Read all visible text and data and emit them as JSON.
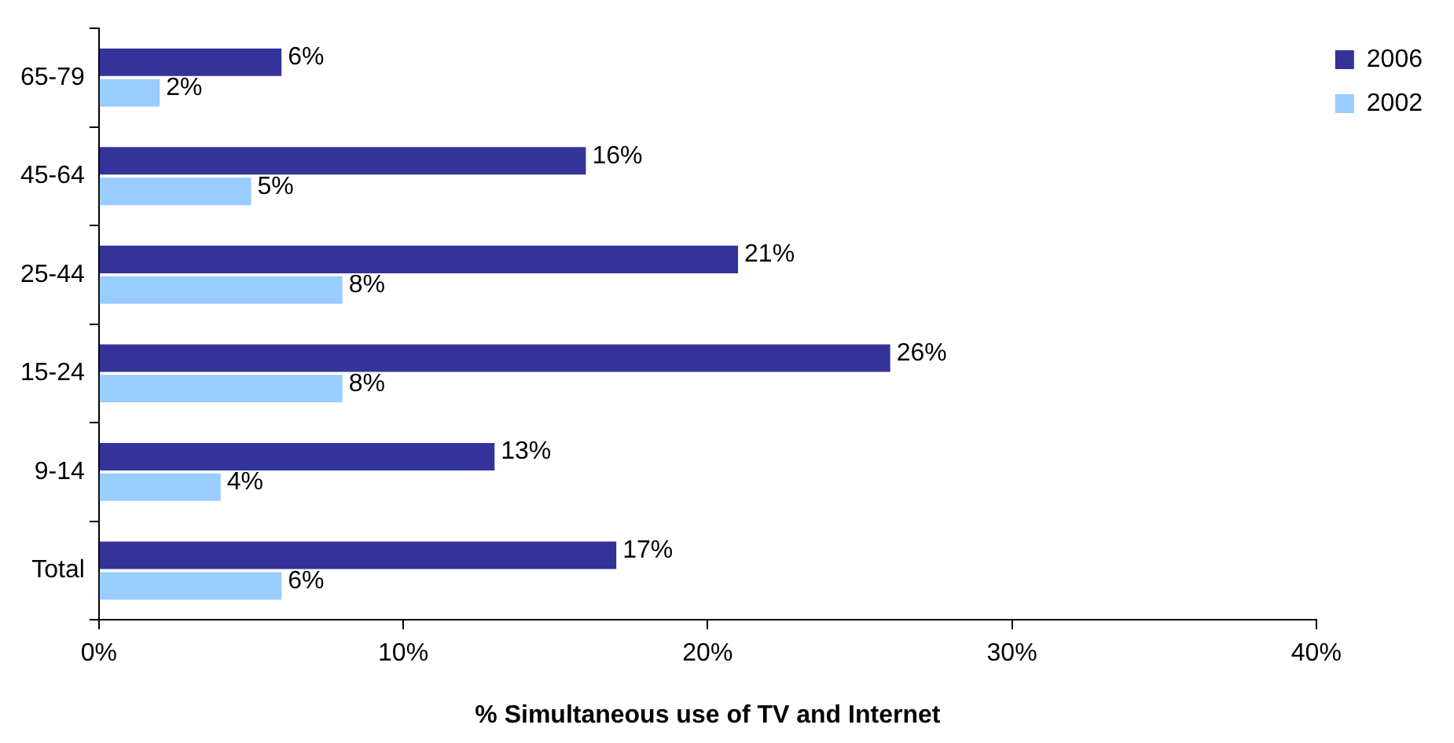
{
  "chart_data": {
    "type": "bar",
    "orientation": "horizontal",
    "xlabel": "% Simultaneous use of TV and Internet",
    "categories": [
      "65-79",
      "45-64",
      "25-44",
      "15-24",
      "9-14",
      "Total"
    ],
    "series": [
      {
        "name": "2006",
        "color": "#333399",
        "values": [
          6,
          16,
          21,
          26,
          13,
          17
        ],
        "value_labels": [
          "6%",
          "16%",
          "21%",
          "26%",
          "13%",
          "17%"
        ]
      },
      {
        "name": "2002",
        "color": "#99ccff",
        "values": [
          2,
          5,
          8,
          8,
          4,
          6
        ],
        "value_labels": [
          "2%",
          "5%",
          "8%",
          "8%",
          "4%",
          "6%"
        ]
      }
    ],
    "xlim": [
      0,
      40
    ],
    "xticks": [
      {
        "value": 0,
        "label": "0%"
      },
      {
        "value": 10,
        "label": "10%"
      },
      {
        "value": 20,
        "label": "20%"
      },
      {
        "value": 30,
        "label": "30%"
      },
      {
        "value": 40,
        "label": "40%"
      }
    ],
    "grid": false,
    "legend": "top right"
  }
}
